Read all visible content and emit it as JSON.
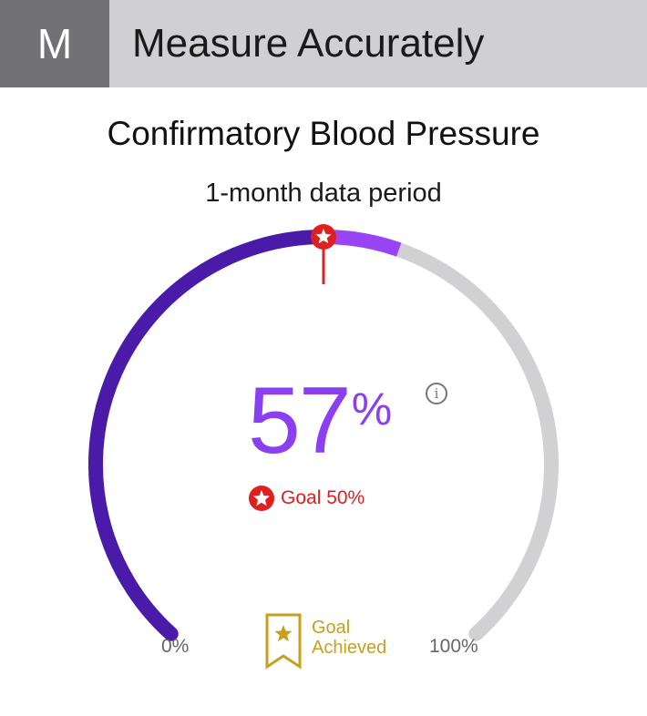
{
  "header": {
    "badge": "M",
    "title": "Measure Accurately"
  },
  "card": {
    "title": "Confirmatory Blood Pressure",
    "subtitle": "1-month data period"
  },
  "gauge": {
    "value": 57,
    "value_display": "57",
    "value_unit": "%",
    "goal_value": 50,
    "goal_label": "Goal 50%",
    "min_label": "0%",
    "max_label": "100%",
    "info_icon": "info-icon",
    "goal_icon": "star-icon",
    "colors": {
      "progress_dark": "#4a1aa8",
      "progress_light": "#9a45f5",
      "track": "#d1d1d3",
      "goal_marker": "#e02020",
      "value_text": "#8a3ff0"
    }
  },
  "status": {
    "icon": "ribbon-star-icon",
    "line1": "Goal",
    "line2": "Achieved",
    "color": "#c7a01d"
  }
}
